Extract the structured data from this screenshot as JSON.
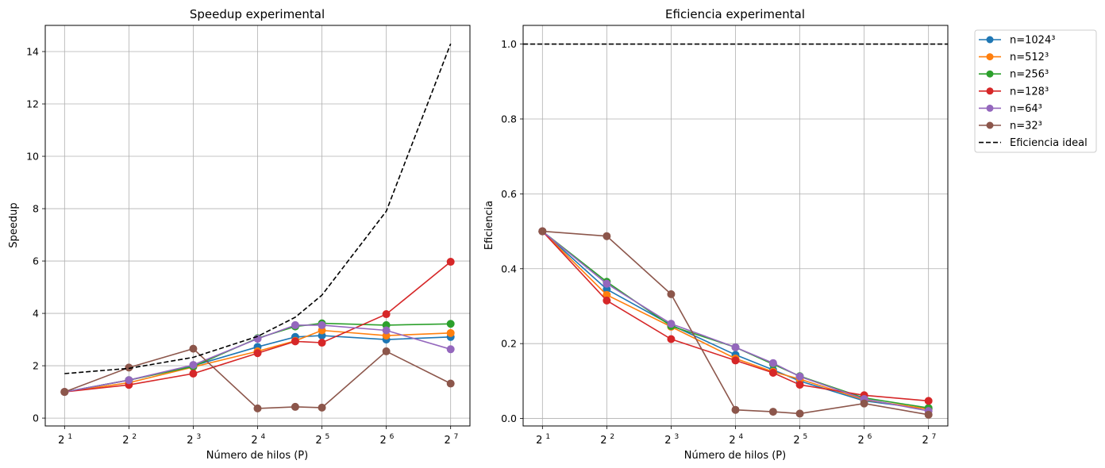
{
  "chart_data": [
    {
      "type": "line",
      "title": "Speedup experimental",
      "xlabel": "Número de hilos (P)",
      "ylabel": "Speedup",
      "xscale": "log2",
      "x_ticks": [
        "2^1",
        "2^2",
        "2^3",
        "2^4",
        "2^5",
        "2^6",
        "2^7"
      ],
      "ylim": [
        -0.3,
        15
      ],
      "y_ticks": [
        "0",
        "2",
        "4",
        "6",
        "8",
        "10",
        "12",
        "14"
      ],
      "grid": true,
      "x": [
        2,
        4,
        8,
        16,
        24,
        32,
        64,
        128
      ],
      "series": [
        {
          "name": "n=1024³",
          "color": "#1f77b4",
          "marker": "circle",
          "values": [
            1.0,
            1.45,
            2.0,
            2.72,
            3.1,
            3.15,
            3.0,
            3.1
          ]
        },
        {
          "name": "n=512³",
          "color": "#ff7f0e",
          "marker": "circle",
          "values": [
            1.0,
            1.35,
            1.95,
            2.55,
            2.95,
            3.35,
            3.15,
            3.25
          ]
        },
        {
          "name": "n=256³",
          "color": "#2ca02c",
          "marker": "circle",
          "values": [
            1.0,
            1.45,
            1.97,
            3.05,
            3.5,
            3.62,
            3.55,
            3.6
          ]
        },
        {
          "name": "n=128³",
          "color": "#d62728",
          "marker": "circle",
          "values": [
            1.0,
            1.27,
            1.7,
            2.48,
            2.93,
            2.88,
            3.97,
            5.97
          ]
        },
        {
          "name": "n=64³",
          "color": "#9467bd",
          "marker": "circle",
          "values": [
            1.0,
            1.45,
            2.03,
            3.03,
            3.55,
            3.55,
            3.35,
            2.63
          ]
        },
        {
          "name": "n=32³",
          "color": "#8c564b",
          "marker": "circle",
          "values": [
            1.0,
            1.93,
            2.65,
            0.37,
            0.43,
            0.4,
            2.55,
            1.32
          ]
        },
        {
          "name": "Eficiencia ideal",
          "color": "#000000",
          "marker": "none",
          "dashed": true,
          "x": [
            2,
            4,
            8,
            16,
            24,
            32,
            64,
            128
          ],
          "values": [
            1.7,
            1.9,
            2.32,
            3.12,
            3.85,
            4.7,
            7.9,
            14.3
          ]
        }
      ]
    },
    {
      "type": "line",
      "title": "Eficiencia experimental",
      "xlabel": "Número de hilos (P)",
      "ylabel": "Eficiencia",
      "xscale": "log2",
      "x_ticks": [
        "2^1",
        "2^2",
        "2^3",
        "2^4",
        "2^5",
        "2^6",
        "2^7"
      ],
      "ylim": [
        -0.02,
        1.05
      ],
      "y_ticks": [
        "0.0",
        "0.2",
        "0.4",
        "0.6",
        "0.8",
        "1.0"
      ],
      "grid": true,
      "legend": "outside-upper-right",
      "x": [
        2,
        4,
        8,
        16,
        24,
        32,
        64,
        128
      ],
      "series": [
        {
          "name": "n=1024³",
          "color": "#1f77b4",
          "marker": "circle",
          "values": [
            0.5,
            0.345,
            0.25,
            0.17,
            0.13,
            0.1,
            0.047,
            0.025
          ]
        },
        {
          "name": "n=512³",
          "color": "#ff7f0e",
          "marker": "circle",
          "values": [
            0.5,
            0.33,
            0.245,
            0.16,
            0.125,
            0.105,
            0.05,
            0.025
          ]
        },
        {
          "name": "n=256³",
          "color": "#2ca02c",
          "marker": "circle",
          "values": [
            0.5,
            0.365,
            0.247,
            0.19,
            0.145,
            0.113,
            0.055,
            0.028
          ]
        },
        {
          "name": "n=128³",
          "color": "#d62728",
          "marker": "circle",
          "values": [
            0.5,
            0.315,
            0.212,
            0.155,
            0.122,
            0.09,
            0.062,
            0.047
          ]
        },
        {
          "name": "n=64³",
          "color": "#9467bd",
          "marker": "circle",
          "values": [
            0.5,
            0.36,
            0.253,
            0.19,
            0.148,
            0.112,
            0.052,
            0.02
          ]
        },
        {
          "name": "n=32³",
          "color": "#8c564b",
          "marker": "circle",
          "values": [
            0.5,
            0.487,
            0.332,
            0.023,
            0.018,
            0.013,
            0.04,
            0.01
          ]
        },
        {
          "name": "Eficiencia ideal",
          "color": "#000000",
          "marker": "none",
          "dashed": true,
          "x": [
            2,
            128
          ],
          "values": [
            1.0,
            1.0
          ]
        }
      ]
    }
  ]
}
